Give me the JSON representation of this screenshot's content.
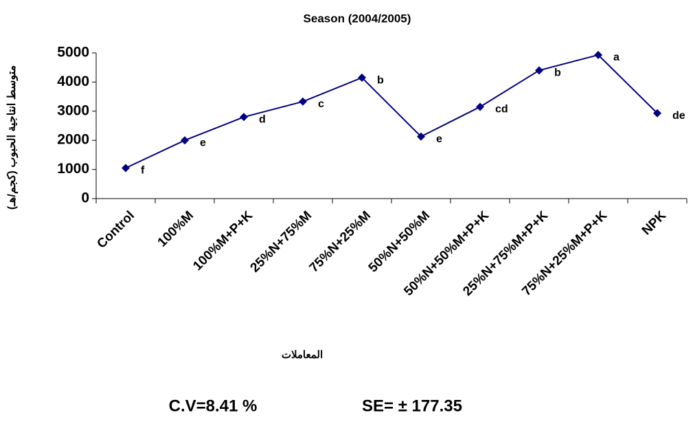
{
  "chart_data": {
    "type": "line",
    "title": "Season (2004/2005)",
    "y_label": "متوسط انتاجية الحبوب (كجم/هـ)",
    "x_label": "المعاملات",
    "categories": [
      "Control",
      "100%M",
      "100%M+P+K",
      "25%N+75%M",
      "75%N+25%M",
      "50%N+50%M",
      "50%N+50%M+P+K",
      "25%N+75%M+P+K",
      "75%N+25%M+P+K",
      "NPK"
    ],
    "values": [
      1050,
      2000,
      2800,
      3330,
      4150,
      2130,
      3150,
      4400,
      4930,
      2930
    ],
    "annotations": [
      "f",
      "e",
      "d",
      "c",
      "b",
      "e",
      "cd",
      "b",
      "a",
      "de"
    ],
    "color": "#000080",
    "ylim": [
      0,
      5000
    ],
    "yticks": [
      0,
      1000,
      2000,
      3000,
      4000,
      5000
    ],
    "notes": [
      "C.V=8.41 %",
      "SE= ± 177.35"
    ]
  }
}
